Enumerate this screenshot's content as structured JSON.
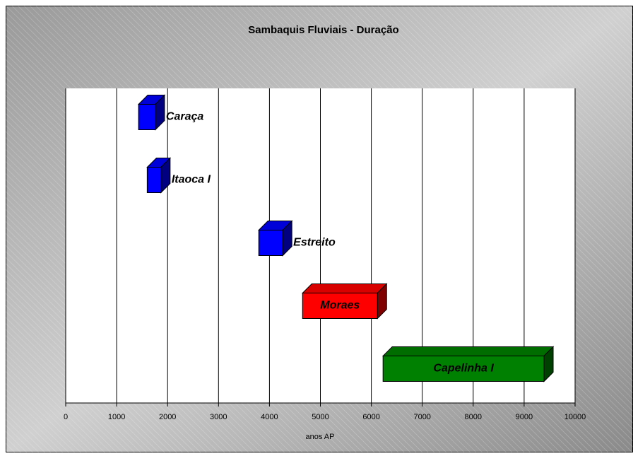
{
  "chart_data": {
    "type": "floating-bar",
    "title": "Sambaquis Fluviais - Duração",
    "x_label": "anos AP",
    "ranges": [
      {
        "label": "Caraça",
        "start": 1430,
        "end": 1760,
        "color": "#0000ff"
      },
      {
        "label": "Itaoca I",
        "start": 1600,
        "end": 1870,
        "color": "#0000ff"
      },
      {
        "label": "Estreito",
        "start": 3790,
        "end": 4260,
        "color": "#0000ff"
      },
      {
        "label": "Moraes",
        "start": 4650,
        "end": 6120,
        "color": "#ff0000"
      },
      {
        "label": "Capelinha I",
        "start": 6230,
        "end": 9390,
        "color": "#008000"
      }
    ],
    "xlim": [
      0,
      10000
    ],
    "xticks": [
      0,
      1000,
      2000,
      3000,
      4000,
      5000,
      6000,
      7000,
      8000,
      9000,
      10000
    ],
    "grid": true
  }
}
